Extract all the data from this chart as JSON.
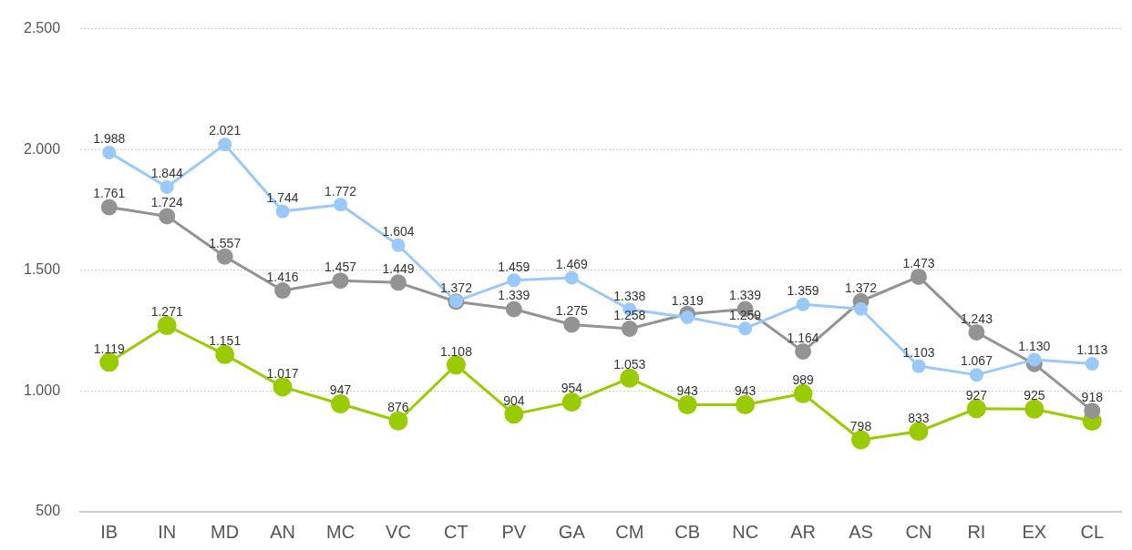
{
  "chart_data": {
    "type": "line",
    "categories": [
      "IB",
      "IN",
      "MD",
      "AN",
      "MC",
      "VC",
      "CT",
      "PV",
      "GA",
      "CM",
      "CB",
      "NC",
      "AR",
      "AS",
      "CN",
      "RI",
      "EX",
      "CL"
    ],
    "series": [
      {
        "color": "#99c9fb",
        "values": [
          1988,
          1844,
          2021,
          1744,
          1772,
          1604,
          1372,
          1459,
          1469,
          1338,
          1305,
          1259,
          1359,
          1340,
          1103,
          1067,
          1130,
          1113
        ],
        "value_labels": [
          "1.988",
          "1.844",
          "2.021",
          "1.744",
          "1.772",
          "1.604",
          "1.372",
          "1.459",
          "1.469",
          "1.338",
          null,
          "1.259",
          "1.359",
          null,
          "1.103",
          "1.067",
          "1.130",
          "1.113"
        ]
      },
      {
        "color": "#939393",
        "values": [
          1761,
          1724,
          1557,
          1416,
          1457,
          1449,
          1370,
          1339,
          1275,
          1258,
          1319,
          1339,
          1164,
          1372,
          1473,
          1243,
          1112,
          918
        ],
        "value_labels": [
          "1.761",
          "1.724",
          "1.557",
          "1.416",
          "1.457",
          "1.449",
          null,
          "1.339",
          "1.275",
          "1.258",
          "1.319",
          "1.339",
          "1.164",
          "1.372",
          "1.473",
          "1.243",
          null,
          "918"
        ]
      },
      {
        "color": "#99cc00",
        "values": [
          1119,
          1271,
          1151,
          1017,
          947,
          876,
          1108,
          904,
          954,
          1053,
          943,
          943,
          989,
          798,
          833,
          927,
          925,
          875
        ],
        "value_labels": [
          "1.119",
          "1.271",
          "1.151",
          "1.017",
          "947",
          "876",
          "1.108",
          "904",
          "954",
          "1.053",
          "943",
          "943",
          "989",
          "798",
          "833",
          "927",
          "925",
          null
        ]
      }
    ],
    "ylim": [
      500,
      2500
    ],
    "yticks": [
      {
        "value": 500,
        "label": "500"
      },
      {
        "value": 1000,
        "label": "1.000"
      },
      {
        "value": 1500,
        "label": "1.500"
      },
      {
        "value": 2000,
        "label": "2.000"
      },
      {
        "value": 2500,
        "label": "2.500"
      }
    ],
    "grid": "y",
    "legend": false,
    "marker": "circle",
    "line_style": "solid"
  }
}
